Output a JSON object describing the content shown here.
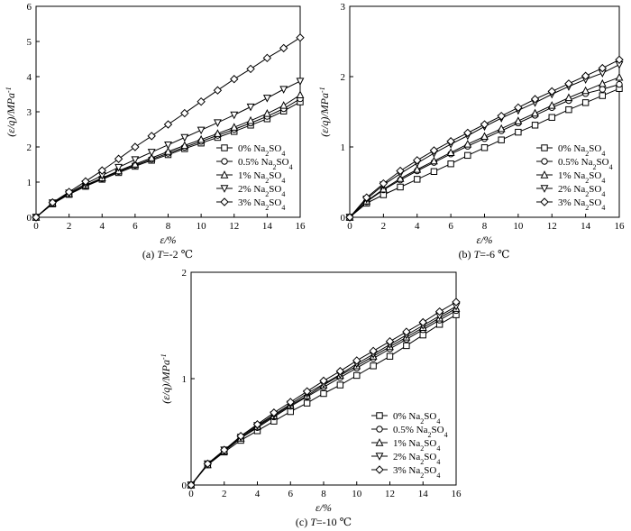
{
  "chart_data": [
    {
      "id": "a",
      "type": "line",
      "caption": "(a) T=-2 ℃",
      "xlabel": "ε/%",
      "ylabel": "(ε/q)/MPa⁻¹",
      "xlim": [
        0,
        16
      ],
      "ylim": [
        0,
        6
      ],
      "xticks": [
        0,
        2,
        4,
        6,
        8,
        10,
        12,
        14,
        16
      ],
      "yticks": [
        0,
        1,
        2,
        3,
        4,
        5,
        6
      ],
      "legend_position": "lower-right",
      "grid": false,
      "x": [
        0,
        1,
        2,
        3,
        4,
        5,
        6,
        7,
        8,
        9,
        10,
        11,
        12,
        13,
        14,
        15,
        16
      ],
      "series": [
        {
          "name": "0% Na₂SO₄",
          "marker": "square",
          "values": [
            0,
            0.38,
            0.65,
            0.88,
            1.08,
            1.27,
            1.45,
            1.62,
            1.78,
            1.95,
            2.11,
            2.27,
            2.44,
            2.62,
            2.8,
            3.02,
            3.28
          ]
        },
        {
          "name": "0.5% Na₂SO₄",
          "marker": "circle",
          "values": [
            0,
            0.39,
            0.66,
            0.89,
            1.1,
            1.3,
            1.48,
            1.65,
            1.82,
            1.99,
            2.16,
            2.33,
            2.5,
            2.68,
            2.87,
            3.09,
            3.37
          ]
        },
        {
          "name": "1% Na₂SO₄",
          "marker": "triangle-up",
          "values": [
            0,
            0.4,
            0.67,
            0.91,
            1.12,
            1.32,
            1.51,
            1.69,
            1.87,
            2.04,
            2.21,
            2.38,
            2.56,
            2.75,
            2.95,
            3.18,
            3.48
          ]
        },
        {
          "name": "2% Na₂SO₄",
          "marker": "triangle-down",
          "values": [
            0,
            0.41,
            0.69,
            0.95,
            1.19,
            1.42,
            1.64,
            1.85,
            2.06,
            2.27,
            2.48,
            2.69,
            2.91,
            3.14,
            3.39,
            3.64,
            3.87
          ]
        },
        {
          "name": "3% Na₂SO₄",
          "marker": "diamond",
          "values": [
            0,
            0.42,
            0.72,
            1.02,
            1.33,
            1.66,
            2.0,
            2.31,
            2.64,
            2.96,
            3.29,
            3.61,
            3.93,
            4.22,
            4.53,
            4.81,
            5.11
          ]
        }
      ]
    },
    {
      "id": "b",
      "type": "line",
      "caption": "(b) T=-6 ℃",
      "xlabel": "ε/%",
      "ylabel": "(ε/q)/MPa⁻¹",
      "xlim": [
        0,
        16
      ],
      "ylim": [
        0,
        3
      ],
      "xticks": [
        0,
        2,
        4,
        6,
        8,
        10,
        12,
        14,
        16
      ],
      "yticks": [
        0,
        1,
        2,
        3
      ],
      "legend_position": "lower-right",
      "grid": false,
      "x": [
        0,
        1,
        2,
        3,
        4,
        5,
        6,
        7,
        8,
        9,
        10,
        11,
        12,
        13,
        14,
        15,
        16
      ],
      "series": [
        {
          "name": "0% Na₂SO₄",
          "marker": "square",
          "values": [
            0,
            0.2,
            0.32,
            0.43,
            0.54,
            0.65,
            0.76,
            0.88,
            0.99,
            1.1,
            1.21,
            1.31,
            1.42,
            1.53,
            1.63,
            1.73,
            1.83
          ]
        },
        {
          "name": "0.5% Na₂SO₄",
          "marker": "circle",
          "values": [
            0,
            0.22,
            0.39,
            0.53,
            0.66,
            0.78,
            0.9,
            1.01,
            1.12,
            1.23,
            1.34,
            1.45,
            1.56,
            1.66,
            1.76,
            1.82,
            1.89
          ]
        },
        {
          "name": "1% Na₂SO₄",
          "marker": "triangle-up",
          "values": [
            0,
            0.23,
            0.4,
            0.55,
            0.68,
            0.8,
            0.92,
            1.04,
            1.15,
            1.26,
            1.37,
            1.48,
            1.59,
            1.7,
            1.8,
            1.9,
            1.99
          ]
        },
        {
          "name": "2% Na₂SO₄",
          "marker": "triangle-down",
          "values": [
            0,
            0.26,
            0.46,
            0.62,
            0.77,
            0.91,
            1.04,
            1.16,
            1.29,
            1.41,
            1.52,
            1.63,
            1.75,
            1.86,
            1.96,
            2.05,
            2.17
          ]
        },
        {
          "name": "3% Na₂SO₄",
          "marker": "diamond",
          "values": [
            0,
            0.28,
            0.48,
            0.66,
            0.81,
            0.95,
            1.08,
            1.2,
            1.32,
            1.44,
            1.56,
            1.68,
            1.79,
            1.9,
            2.01,
            2.12,
            2.24
          ]
        }
      ]
    },
    {
      "id": "c",
      "type": "line",
      "caption": "(c) T=-10 ℃",
      "xlabel": "ε/%",
      "ylabel": "(ε/q)/MPa⁻¹",
      "xlim": [
        0,
        16
      ],
      "ylim": [
        0,
        2
      ],
      "xticks": [
        0,
        2,
        4,
        6,
        8,
        10,
        12,
        14,
        16
      ],
      "yticks": [
        0,
        1,
        2
      ],
      "legend_position": "lower-right",
      "grid": false,
      "x": [
        0,
        1,
        2,
        3,
        4,
        5,
        6,
        7,
        8,
        9,
        10,
        11,
        12,
        13,
        14,
        15,
        16
      ],
      "series": [
        {
          "name": "0% Na₂SO₄",
          "marker": "square",
          "values": [
            0,
            0.19,
            0.31,
            0.42,
            0.51,
            0.6,
            0.69,
            0.77,
            0.86,
            0.94,
            1.03,
            1.12,
            1.21,
            1.31,
            1.41,
            1.51,
            1.6
          ]
        },
        {
          "name": "0.5% Na₂SO₄",
          "marker": "circle",
          "values": [
            0,
            0.19,
            0.32,
            0.44,
            0.54,
            0.64,
            0.74,
            0.83,
            0.92,
            1.01,
            1.1,
            1.19,
            1.28,
            1.37,
            1.46,
            1.55,
            1.64
          ]
        },
        {
          "name": "1% Na₂SO₄",
          "marker": "triangle-up",
          "values": [
            0,
            0.19,
            0.32,
            0.44,
            0.55,
            0.65,
            0.75,
            0.84,
            0.94,
            1.03,
            1.12,
            1.21,
            1.3,
            1.39,
            1.48,
            1.57,
            1.66
          ]
        },
        {
          "name": "2% Na₂SO₄",
          "marker": "triangle-down",
          "values": [
            0,
            0.2,
            0.33,
            0.45,
            0.56,
            0.66,
            0.76,
            0.86,
            0.95,
            1.04,
            1.14,
            1.23,
            1.32,
            1.41,
            1.5,
            1.59,
            1.68
          ]
        },
        {
          "name": "3% Na₂SO₄",
          "marker": "diamond",
          "values": [
            0,
            0.2,
            0.33,
            0.46,
            0.57,
            0.68,
            0.78,
            0.88,
            0.98,
            1.07,
            1.17,
            1.26,
            1.35,
            1.44,
            1.53,
            1.63,
            1.72
          ]
        }
      ]
    }
  ]
}
